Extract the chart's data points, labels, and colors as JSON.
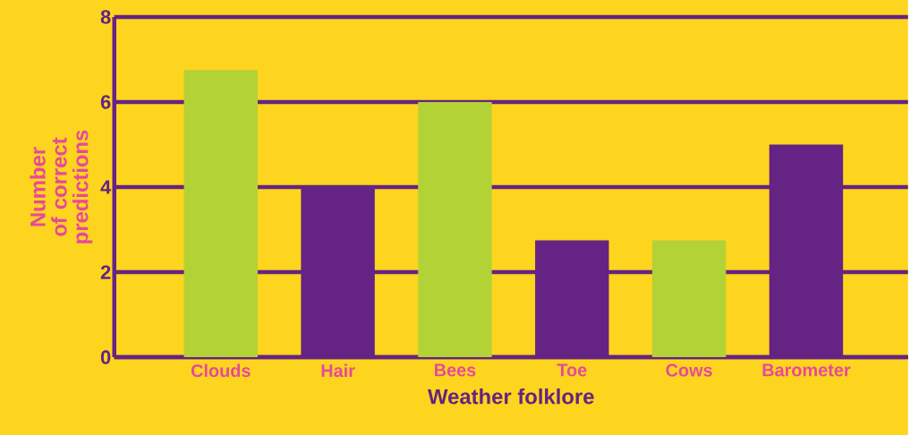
{
  "chart_data": {
    "type": "bar",
    "xlabel": "Weather folklore",
    "ylabel": "Number of correct predictions",
    "categories": [
      "Clouds",
      "Hair",
      "Bees",
      "Toe",
      "Cows",
      "Barometer"
    ],
    "values": [
      6.75,
      4,
      6,
      2.75,
      2.75,
      5
    ],
    "colors": [
      "#b3d236",
      "#652383",
      "#b3d236",
      "#652383",
      "#b3d236",
      "#652383"
    ],
    "ylim": [
      0,
      8
    ],
    "yticks": [
      0,
      2,
      4,
      6,
      8
    ],
    "grid": "y"
  }
}
